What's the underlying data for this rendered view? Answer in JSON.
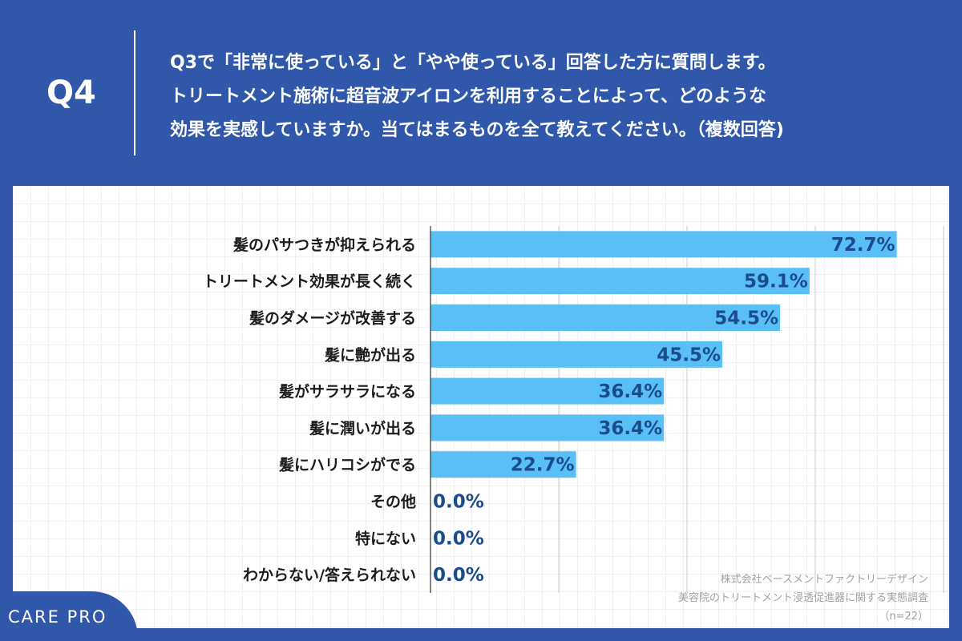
{
  "header": {
    "q_number": "Q4",
    "question_lines": [
      "Q3で「非常に使っている」と「やや使っている」回答した方に質問します。",
      "トリートメント施術に超音波アイロンを利用することによって、どのような",
      "効果を実感していますか。当てはまるものを全て教えてください。（複数回答)"
    ]
  },
  "colors": {
    "background": "#3057a9",
    "bar": "#5abef7",
    "value_text": "#1a4c8c",
    "grid": "#c8c8c8"
  },
  "chart_data": {
    "type": "bar",
    "orientation": "horizontal",
    "categories": [
      "髪のパサつきが抑えられる",
      "トリートメント効果が長く続く",
      "髪のダメージが改善する",
      "髪に艶が出る",
      "髪がサラサラになる",
      "髪に潤いが出る",
      "髪にハリコシがでる",
      "その他",
      "特にない",
      "わからない/答えられない"
    ],
    "values": [
      72.7,
      59.1,
      54.5,
      45.5,
      36.4,
      36.4,
      22.7,
      0.0,
      0.0,
      0.0
    ],
    "value_labels": [
      "72.7%",
      "59.1%",
      "54.5%",
      "45.5%",
      "36.4%",
      "36.4%",
      "22.7%",
      "0.0%",
      "0.0%",
      "0.0%"
    ],
    "xlim": [
      0,
      80
    ],
    "x_gridlines": [
      0,
      20,
      40,
      60,
      80
    ],
    "xlabel": "",
    "ylabel": "",
    "title": ""
  },
  "footnote": {
    "lines": [
      "株式会社ベースメントファクトリーデザイン",
      "美容院のトリートメント浸透促進器に関する実態調査",
      "（n=22）"
    ]
  },
  "brand": {
    "name": "CARE PRO"
  }
}
